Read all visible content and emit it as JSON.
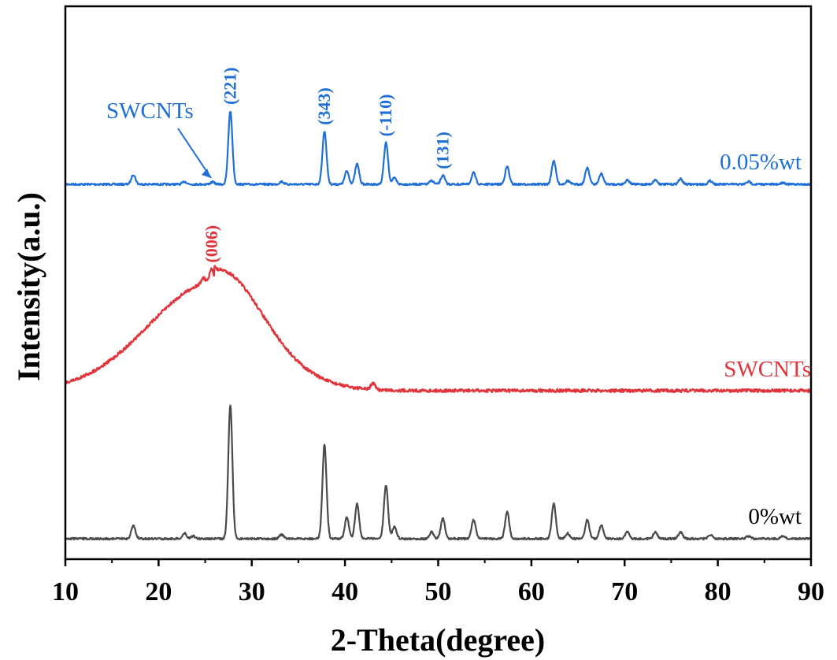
{
  "chart_data": {
    "type": "line",
    "xlabel": "2-Theta(degree)",
    "ylabel": "Intensity(a.u.)",
    "xlim": [
      10,
      90
    ],
    "xticks": [
      10,
      20,
      30,
      40,
      50,
      60,
      70,
      80,
      90
    ],
    "yticks_shown": false,
    "series": [
      {
        "name": "0.05%wt",
        "color": "#1f6fd6",
        "peaks": [
          {
            "x": 17.3,
            "h": 0.11
          },
          {
            "x": 22.8,
            "h": 0.03
          },
          {
            "x": 25.8,
            "h": 0.025
          },
          {
            "x": 27.7,
            "h": 0.83
          },
          {
            "x": 33.2,
            "h": 0.03
          },
          {
            "x": 37.8,
            "h": 0.6
          },
          {
            "x": 40.2,
            "h": 0.15
          },
          {
            "x": 41.3,
            "h": 0.23
          },
          {
            "x": 44.4,
            "h": 0.47
          },
          {
            "x": 45.3,
            "h": 0.07
          },
          {
            "x": 49.3,
            "h": 0.04
          },
          {
            "x": 50.5,
            "h": 0.1
          },
          {
            "x": 53.8,
            "h": 0.13
          },
          {
            "x": 57.4,
            "h": 0.2
          },
          {
            "x": 62.4,
            "h": 0.27
          },
          {
            "x": 63.9,
            "h": 0.04
          },
          {
            "x": 66.0,
            "h": 0.19
          },
          {
            "x": 67.5,
            "h": 0.12
          },
          {
            "x": 70.3,
            "h": 0.05
          },
          {
            "x": 73.3,
            "h": 0.05
          },
          {
            "x": 76.0,
            "h": 0.06
          },
          {
            "x": 79.2,
            "h": 0.04
          },
          {
            "x": 83.3,
            "h": 0.03
          },
          {
            "x": 87.0,
            "h": 0.02
          }
        ]
      },
      {
        "name": "SWCNTs",
        "color": "#e0353c",
        "broad_hump": {
          "center": 26.0,
          "height": 1.0,
          "width_left": 7.0,
          "width_right": 4.5
        },
        "peaks": [
          {
            "x": 25.7,
            "h": 0.12
          },
          {
            "x": 24.8,
            "h": 0.05
          },
          {
            "x": 43.0,
            "h": 0.06
          }
        ]
      },
      {
        "name": "0%wt",
        "color": "#4a4a4a",
        "peaks": [
          {
            "x": 17.3,
            "h": 0.1
          },
          {
            "x": 22.8,
            "h": 0.04
          },
          {
            "x": 23.7,
            "h": 0.02
          },
          {
            "x": 27.7,
            "h": 1.0
          },
          {
            "x": 33.2,
            "h": 0.03
          },
          {
            "x": 37.8,
            "h": 0.7
          },
          {
            "x": 40.2,
            "h": 0.16
          },
          {
            "x": 41.3,
            "h": 0.26
          },
          {
            "x": 44.4,
            "h": 0.4
          },
          {
            "x": 45.3,
            "h": 0.09
          },
          {
            "x": 49.3,
            "h": 0.05
          },
          {
            "x": 50.5,
            "h": 0.15
          },
          {
            "x": 53.8,
            "h": 0.14
          },
          {
            "x": 57.4,
            "h": 0.2
          },
          {
            "x": 62.4,
            "h": 0.26
          },
          {
            "x": 63.9,
            "h": 0.04
          },
          {
            "x": 66.0,
            "h": 0.14
          },
          {
            "x": 67.5,
            "h": 0.1
          },
          {
            "x": 70.3,
            "h": 0.05
          },
          {
            "x": 73.3,
            "h": 0.05
          },
          {
            "x": 76.0,
            "h": 0.05
          },
          {
            "x": 79.2,
            "h": 0.03
          },
          {
            "x": 83.3,
            "h": 0.02
          },
          {
            "x": 87.0,
            "h": 0.02
          }
        ]
      }
    ],
    "annotations": [
      {
        "text": "(221)",
        "x": 27.7,
        "series": "0.05%wt",
        "color": "#1f6fd6"
      },
      {
        "text": "(343)",
        "x": 37.8,
        "series": "0.05%wt",
        "color": "#1f6fd6"
      },
      {
        "text": "(-110)",
        "x": 44.4,
        "series": "0.05%wt",
        "color": "#1f6fd6"
      },
      {
        "text": "(131)",
        "x": 50.5,
        "series": "0.05%wt",
        "color": "#1f6fd6"
      },
      {
        "text": "(006)",
        "x": 25.7,
        "series": "SWCNTs",
        "color": "#e0353c"
      },
      {
        "text": "SWCNTs",
        "x": 25.8,
        "series": "0.05%wt",
        "color": "#1f6fd6",
        "arrow": true
      }
    ]
  }
}
